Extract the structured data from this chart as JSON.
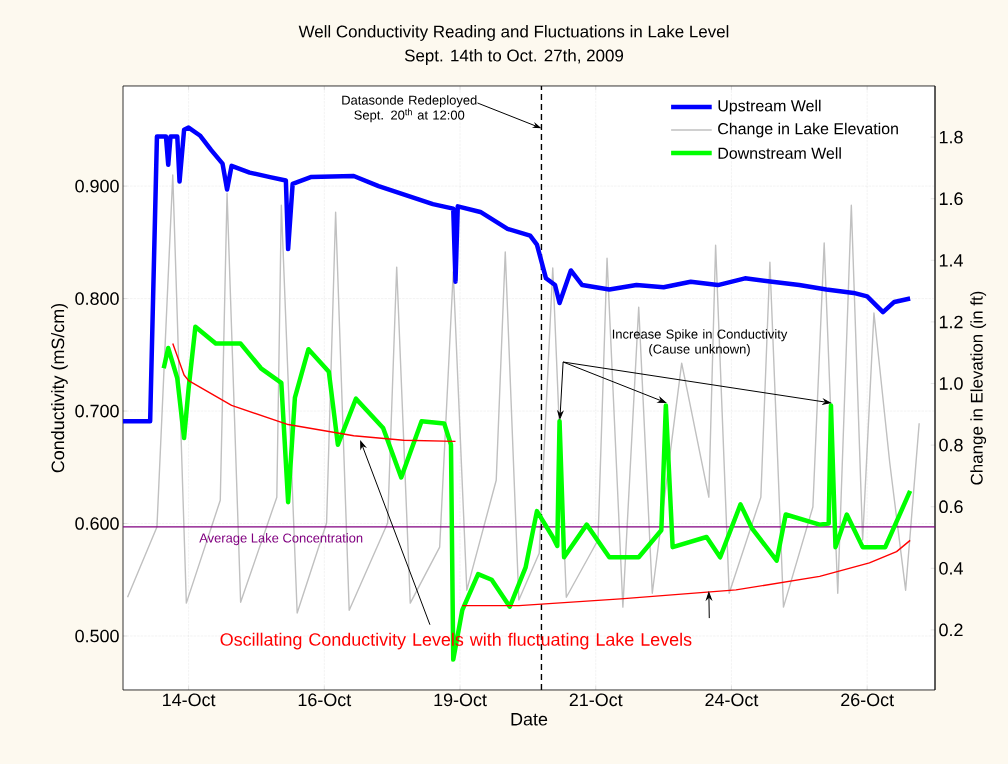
{
  "chart_data": {
    "type": "line",
    "title": "Well Conductivity Reading and Fluctuations in Lake Level",
    "subtitle": "Sept. 14th to Oct. 27th, 2009",
    "xlabel": "Date",
    "ylabel": "Conductivity (mS/cm)",
    "y2label": "Change in Elevation (in ft)",
    "xlim": [
      "2009-10-12T19:00",
      "2009-10-27T18:00"
    ],
    "xticks": [
      {
        "value": "2009-10-14T00:00",
        "label": "14-Oct"
      },
      {
        "value": "2009-10-16T12:00",
        "label": "16-Oct"
      },
      {
        "value": "2009-10-19T00:00",
        "label": "19-Oct"
      },
      {
        "value": "2009-10-21T12:00",
        "label": "21-Oct"
      },
      {
        "value": "2009-10-24T00:00",
        "label": "24-Oct"
      },
      {
        "value": "2009-10-26T12:00",
        "label": "26-Oct"
      }
    ],
    "ylim": [
      0.452,
      0.989
    ],
    "yticks": [
      {
        "value": 0.5,
        "label": "0.500"
      },
      {
        "value": 0.6,
        "label": "0.600"
      },
      {
        "value": 0.7,
        "label": "0.700"
      },
      {
        "value": 0.8,
        "label": "0.800"
      },
      {
        "value": 0.9,
        "label": "0.900"
      }
    ],
    "y2lim": [
      0.005,
      1.966
    ],
    "y2ticks": [
      0.2,
      0.4,
      0.6,
      0.8,
      {
        "value": 1.0,
        "label": "1.0"
      },
      1.2,
      1.4,
      1.6,
      1.8
    ],
    "grid": true,
    "legend": "top right",
    "series": [
      {
        "name": "Upstream Well",
        "color": "#0000ff",
        "x": [
          "2009-10-12T19:00",
          "2009-10-13T07:00",
          "2009-10-13T10:00",
          "2009-10-13T14:00",
          "2009-10-13T15:00",
          "2009-10-13T16:00",
          "2009-10-13T19:00",
          "2009-10-13T20:00",
          "2009-10-13T22:00",
          "2009-10-14T00:00",
          "2009-10-14T05:00",
          "2009-10-14T10:00",
          "2009-10-14T15:00",
          "2009-10-14T17:00",
          "2009-10-14T19:00",
          "2009-10-15T03:00",
          "2009-10-15T12:00",
          "2009-10-15T19:00",
          "2009-10-15T20:00",
          "2009-10-15T22:00",
          "2009-10-16T06:00",
          "2009-10-17T01:00",
          "2009-10-17T12:00",
          "2009-10-18T00:00",
          "2009-10-18T12:00",
          "2009-10-18T21:00",
          "2009-10-18T22:00",
          "2009-10-18T23:00",
          "2009-10-19T09:00",
          "2009-10-19T21:00",
          "2009-10-20T07:00",
          "2009-10-20T10:00",
          "2009-10-20T14:00",
          "2009-10-20T18:00",
          "2009-10-20T20:00",
          "2009-10-21T01:00",
          "2009-10-21T06:00",
          "2009-10-21T18:00",
          "2009-10-22T06:00",
          "2009-10-22T18:00",
          "2009-10-23T06:00",
          "2009-10-23T18:00",
          "2009-10-24T06:00",
          "2009-10-24T18:00",
          "2009-10-25T06:00",
          "2009-10-25T18:00",
          "2009-10-26T06:00",
          "2009-10-26T12:00",
          "2009-10-26T19:00",
          "2009-10-27T00:00",
          "2009-10-27T07:00"
        ],
        "values": [
          0.691,
          0.691,
          0.944,
          0.944,
          0.919,
          0.944,
          0.944,
          0.904,
          0.95,
          0.952,
          0.945,
          0.932,
          0.92,
          0.897,
          0.918,
          0.912,
          0.908,
          0.905,
          0.844,
          0.902,
          0.908,
          0.909,
          0.9,
          0.892,
          0.884,
          0.88,
          0.815,
          0.882,
          0.877,
          0.862,
          0.856,
          0.848,
          0.818,
          0.812,
          0.796,
          0.825,
          0.812,
          0.808,
          0.812,
          0.81,
          0.815,
          0.812,
          0.818,
          0.815,
          0.812,
          0.808,
          0.805,
          0.802,
          0.788,
          0.797,
          0.8
        ]
      },
      {
        "name": "Change in Lake Elevation",
        "color": "#c0c0c0",
        "axis": "y2",
        "x": [
          "2009-10-12T21:00",
          "2009-10-13T10:00",
          "2009-10-13T17:00",
          "2009-10-13T23:00",
          "2009-10-14T14:00",
          "2009-10-14T17:00",
          "2009-10-14T23:00",
          "2009-10-15T15:00",
          "2009-10-15T17:00",
          "2009-10-16T00:00",
          "2009-10-16T13:00",
          "2009-10-16T17:00",
          "2009-10-16T23:00",
          "2009-10-17T16:00",
          "2009-10-17T20:00",
          "2009-10-18T02:00",
          "2009-10-18T15:00",
          "2009-10-18T21:00",
          "2009-10-19T03:00",
          "2009-10-19T16:00",
          "2009-10-19T20:00",
          "2009-10-20T02:00",
          "2009-10-20T11:00",
          "2009-10-20T17:00",
          "2009-10-20T23:00",
          "2009-10-21T13:00",
          "2009-10-21T17:00",
          "2009-10-22T00:00",
          "2009-10-22T07:00",
          "2009-10-22T13:00",
          "2009-10-23T02:00",
          "2009-10-23T14:00",
          "2009-10-23T17:00",
          "2009-10-23T23:00",
          "2009-10-24T13:00",
          "2009-10-24T17:00",
          "2009-10-24T23:00",
          "2009-10-25T12:00",
          "2009-10-25T17:00",
          "2009-10-25T23:00",
          "2009-10-26T05:00",
          "2009-10-26T10:00",
          "2009-10-26T15:00",
          "2009-10-26T22:00",
          "2009-10-27T05:00",
          "2009-10-27T11:00"
        ],
        "values": [
          0.306,
          0.534,
          1.677,
          0.287,
          0.621,
          1.618,
          0.29,
          0.631,
          1.579,
          0.255,
          0.547,
          1.556,
          0.264,
          0.547,
          1.378,
          0.287,
          0.469,
          1.362,
          0.329,
          0.686,
          1.427,
          0.297,
          0.449,
          1.375,
          0.306,
          0.492,
          1.407,
          0.274,
          1.248,
          0.319,
          1.066,
          0.631,
          1.449,
          0.319,
          0.631,
          1.394,
          0.274,
          0.599,
          1.456,
          0.319,
          1.579,
          0.492,
          1.229,
          0.742,
          0.329,
          0.871
        ]
      },
      {
        "name": "Downstream Well",
        "color": "#00ff00",
        "x": [
          "2009-10-13T13:00",
          "2009-10-13T15:00",
          "2009-10-13T19:00",
          "2009-10-13T22:00",
          "2009-10-14T00:00",
          "2009-10-14T03:00",
          "2009-10-14T12:00",
          "2009-10-14T23:00",
          "2009-10-15T08:00",
          "2009-10-15T17:00",
          "2009-10-15T20:00",
          "2009-10-15T23:00",
          "2009-10-16T05:00",
          "2009-10-16T14:00",
          "2009-10-16T18:00",
          "2009-10-17T02:00",
          "2009-10-17T14:00",
          "2009-10-17T22:00",
          "2009-10-18T07:00",
          "2009-10-18T17:00",
          "2009-10-18T20:00",
          "2009-10-18T21:00",
          "2009-10-19T01:00",
          "2009-10-19T08:00",
          "2009-10-19T14:00",
          "2009-10-19T22:00",
          "2009-10-20T05:00",
          "2009-10-20T10:00",
          "2009-10-20T17:00",
          "2009-10-20T19:00",
          "2009-10-20T20:00",
          "2009-10-20T22:00",
          "2009-10-21T08:00",
          "2009-10-21T18:00",
          "2009-10-22T07:00",
          "2009-10-22T17:00",
          "2009-10-22T19:00",
          "2009-10-22T22:00",
          "2009-10-23T13:00",
          "2009-10-23T19:00",
          "2009-10-24T04:00",
          "2009-10-24T09:00",
          "2009-10-24T20:00",
          "2009-10-25T00:00",
          "2009-10-25T15:00",
          "2009-10-25T19:00",
          "2009-10-25T20:00",
          "2009-10-25T22:00",
          "2009-10-26T03:00",
          "2009-10-26T10:00",
          "2009-10-26T20:00",
          "2009-10-27T07:00"
        ],
        "values": [
          0.738,
          0.756,
          0.729,
          0.676,
          0.72,
          0.775,
          0.76,
          0.76,
          0.738,
          0.725,
          0.619,
          0.712,
          0.755,
          0.735,
          0.67,
          0.711,
          0.685,
          0.641,
          0.691,
          0.689,
          0.67,
          0.479,
          0.523,
          0.555,
          0.55,
          0.526,
          0.561,
          0.611,
          0.588,
          0.58,
          0.691,
          0.57,
          0.599,
          0.57,
          0.57,
          0.594,
          0.705,
          0.579,
          0.588,
          0.57,
          0.617,
          0.596,
          0.567,
          0.608,
          0.599,
          0.6,
          0.705,
          0.579,
          0.608,
          0.579,
          0.579,
          0.629
        ]
      },
      {
        "color": "#ff0000",
        "x": [
          "2009-10-13T17:00",
          "2009-10-13T22:00",
          "2009-10-14T00:00",
          "2009-10-14T19:00",
          "2009-10-15T20:00",
          "2009-10-17T01:00",
          "2009-10-17T23:00",
          "2009-10-18T22:00"
        ],
        "values": [
          0.76,
          0.732,
          0.727,
          0.705,
          0.688,
          0.678,
          0.674,
          0.673
        ]
      },
      {
        "color": "#ff0000",
        "x": [
          "2009-10-19T01:00",
          "2009-10-20T02:00",
          "2009-10-21T23:00",
          "2009-10-24T02:00",
          "2009-10-25T15:00",
          "2009-10-26T13:00",
          "2009-10-27T01:00",
          "2009-10-27T07:00"
        ],
        "values": [
          0.527,
          0.527,
          0.533,
          0.541,
          0.553,
          0.565,
          0.575,
          0.585
        ]
      }
    ],
    "ref_lines": [
      {
        "axis": "y",
        "value": 0.597,
        "label": "Average Lake Concentration",
        "color": "#800080",
        "line_style": "solid"
      },
      {
        "axis": "x",
        "value": "2009-10-20T12:00",
        "label": "Datasonde Redeployed Sept. 20$^{th}$ at 12:00",
        "color": "#000000",
        "line_style": "dashed"
      }
    ],
    "annotations": [
      "Increase Spike in Conductivity (Cause unknown)",
      {
        "text": "Oscillating Conductivity Levels with fluctuating Lake Levels",
        "x": "2009-10-23T14:00",
        "y": 0.54
      }
    ]
  }
}
